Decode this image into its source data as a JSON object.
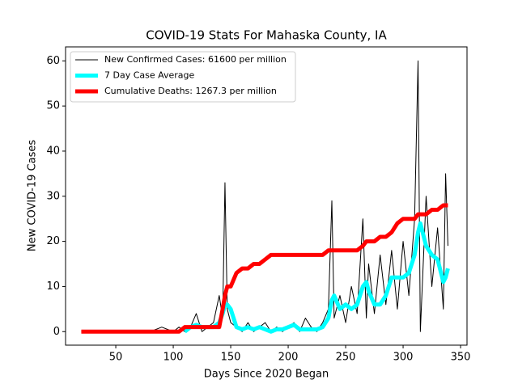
{
  "chart_data": {
    "type": "line",
    "title": "COVID-19 Stats For Mahaska County, IA",
    "x_label": "Days Since 2020 Began",
    "y_label": "New COVID-19 Cases",
    "xlim": [
      6.3,
      355.6
    ],
    "ylim": [
      -3.0,
      63.1
    ],
    "xticks": [
      50,
      100,
      150,
      200,
      250,
      300,
      350
    ],
    "yticks": [
      0,
      10,
      20,
      30,
      40,
      50,
      60
    ],
    "legend": "upper left",
    "x": [
      20,
      30,
      40,
      50,
      60,
      70,
      80,
      90,
      100,
      105,
      110,
      115,
      120,
      125,
      130,
      135,
      140,
      143,
      145,
      147,
      150,
      155,
      160,
      165,
      170,
      175,
      180,
      185,
      190,
      195,
      200,
      205,
      210,
      215,
      220,
      225,
      230,
      235,
      238,
      240,
      245,
      250,
      255,
      260,
      265,
      268,
      270,
      275,
      280,
      285,
      290,
      295,
      300,
      305,
      310,
      313,
      315,
      320,
      325,
      330,
      335,
      337,
      339
    ],
    "series": [
      {
        "name": "New Confirmed Cases: 61600 per million",
        "color": "#000000",
        "width": 1,
        "values": [
          0,
          0,
          0,
          0,
          0,
          0,
          0,
          1,
          0,
          1,
          0,
          1,
          4,
          0,
          1,
          2,
          8,
          3,
          33,
          5,
          2,
          1,
          0,
          2,
          0,
          1,
          2,
          0,
          1,
          0,
          1,
          2,
          0,
          3,
          1,
          0,
          2,
          5,
          29,
          3,
          8,
          2,
          10,
          4,
          25,
          3,
          15,
          4,
          17,
          6,
          18,
          5,
          20,
          8,
          25,
          60,
          0,
          30,
          10,
          23,
          5,
          35,
          19
        ]
      },
      {
        "name": "7 Day Case Average",
        "color": "#00ffff",
        "width": 5,
        "values": [
          null,
          null,
          null,
          null,
          null,
          null,
          null,
          null,
          null,
          null,
          0,
          1,
          1.5,
          1,
          1,
          1,
          2,
          4,
          6,
          6,
          5,
          1,
          0.5,
          1,
          0.5,
          1,
          0.5,
          0,
          0.5,
          0.5,
          1,
          1.5,
          0.5,
          0.5,
          0.5,
          0.5,
          1,
          3,
          7,
          8,
          5,
          6,
          5,
          6,
          10,
          11,
          9,
          6,
          6,
          8,
          12,
          12,
          12,
          13,
          17,
          22,
          24,
          19,
          17,
          16,
          11,
          12,
          14
        ]
      },
      {
        "name": "Cumulative Deaths: 1267.3 per million",
        "color": "#ff0000",
        "width": 5,
        "values": [
          0,
          0,
          0,
          0,
          0,
          0,
          0,
          0,
          0,
          0,
          1,
          1,
          1,
          1,
          1,
          1,
          1,
          5,
          8,
          10,
          10,
          13,
          14,
          14,
          15,
          15,
          16,
          17,
          17,
          17,
          17,
          17,
          17,
          17,
          17,
          17,
          17,
          18,
          18,
          18,
          18,
          18,
          18,
          18,
          19,
          20,
          20,
          20,
          21,
          21,
          22,
          24,
          25,
          25,
          25,
          26,
          26,
          26,
          27,
          27,
          28,
          28,
          28
        ]
      }
    ]
  }
}
